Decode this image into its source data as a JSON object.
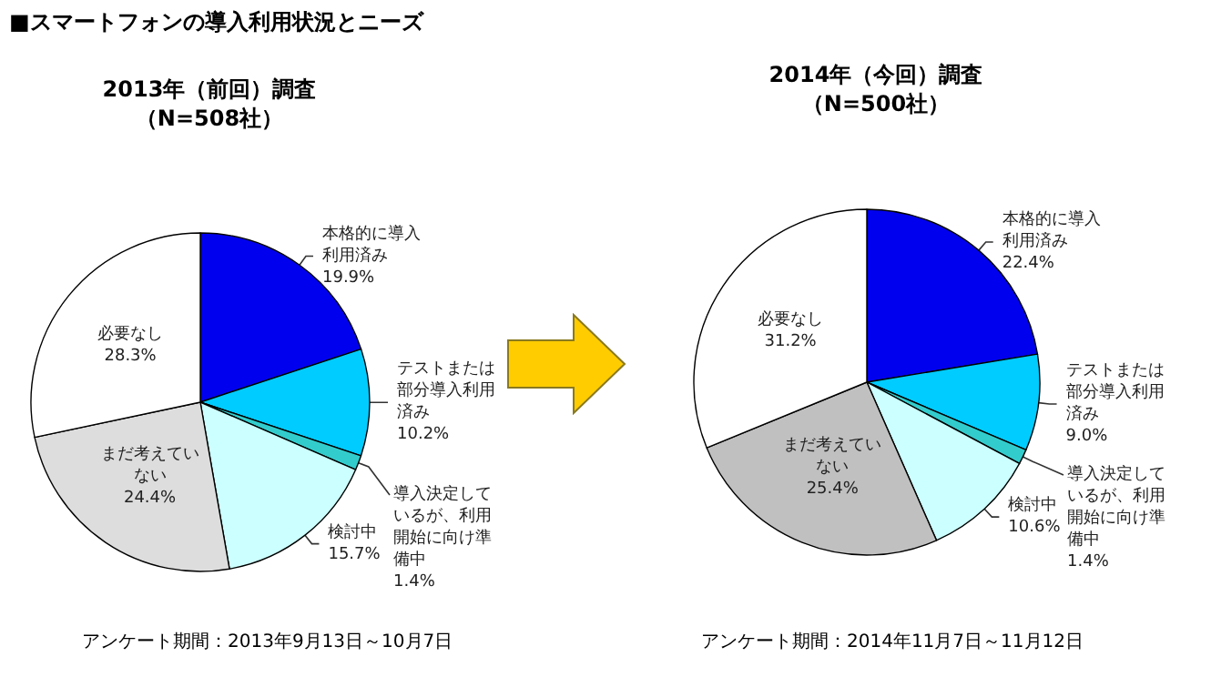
{
  "chart_data": [
    {
      "type": "pie",
      "title": "2013年（前回）調査",
      "subtitle": "（N=508社）",
      "annotations": [
        "■スマートフォンの導入利用状況とニーズ",
        "アンケート期間：2013年9月13日～10月7日"
      ],
      "categories": [
        "本格的に導入利用済み",
        "テストまたは部分導入利用済み",
        "導入決定しているが、利用開始に向け準備中",
        "検討中",
        "まだ考えていない",
        "必要なし"
      ],
      "values": [
        19.9,
        10.2,
        1.4,
        15.7,
        24.4,
        28.3
      ],
      "colors": [
        "#0000ee",
        "#00ccff",
        "#33cccc",
        "#ccffff",
        "#dddddd",
        "#ffffff"
      ],
      "value_labels": [
        "19.9%",
        "10.2%",
        "1.4%",
        "15.7%",
        "24.4%",
        "28.3%"
      ]
    },
    {
      "type": "pie",
      "title": "2014年（今回）調査",
      "subtitle": "（N=500社）",
      "annotations": [
        "アンケート期間：2014年11月7日～11月12日"
      ],
      "categories": [
        "本格的に導入利用済み",
        "テストまたは部分導入利用済み",
        "導入決定しているが、利用開始に向け準備中",
        "検討中",
        "まだ考えていない",
        "必要なし"
      ],
      "values": [
        22.4,
        9.0,
        1.4,
        10.6,
        25.4,
        31.2
      ],
      "colors": [
        "#0000ee",
        "#00ccff",
        "#33cccc",
        "#ccffff",
        "#c0c0c0",
        "#ffffff"
      ],
      "value_labels": [
        "22.4%",
        "9.0%",
        "1.4%",
        "10.6%",
        "25.4%",
        "31.2%"
      ]
    }
  ]
}
